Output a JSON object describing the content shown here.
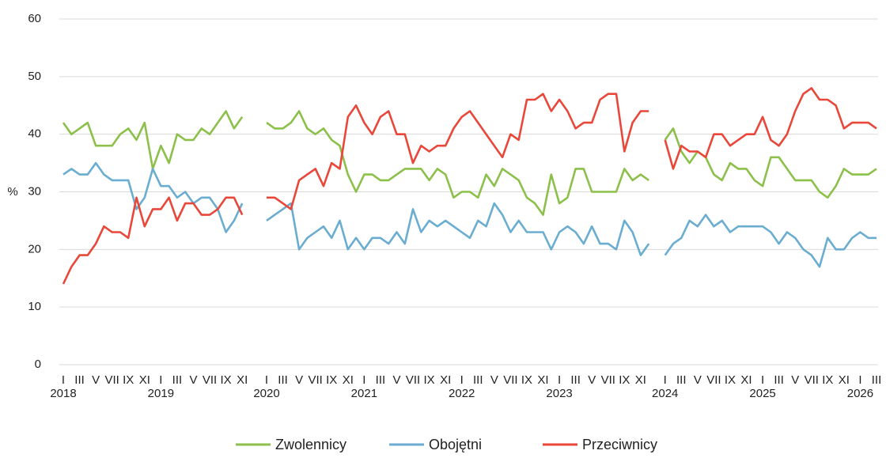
{
  "chart_data": {
    "type": "line",
    "ylabel": "%",
    "ylim": [
      0,
      60
    ],
    "yticks": [
      0,
      10,
      20,
      30,
      40,
      50,
      60
    ],
    "grid": true,
    "legend": "bottom",
    "categories": [
      "I",
      null,
      "III",
      null,
      "V",
      null,
      "VII",
      null,
      "IX",
      null,
      "XI",
      null,
      "I",
      null,
      "III",
      null,
      "V",
      null,
      "VII",
      null,
      "IX",
      null,
      "XI",
      null,
      null,
      "I",
      null,
      "III",
      null,
      "V",
      null,
      "VII",
      null,
      "IX",
      null,
      "XI",
      null,
      "I",
      null,
      "III",
      null,
      "V",
      null,
      "VII",
      null,
      "IX",
      null,
      "XI",
      null,
      "I",
      null,
      "III",
      null,
      "V",
      null,
      "VII",
      null,
      "IX",
      null,
      "XI",
      null,
      "I",
      null,
      "III",
      null,
      "V",
      null,
      "VII",
      null,
      "IX",
      null,
      "XI",
      null,
      null,
      "I",
      null,
      "III",
      null,
      "V",
      null,
      "VII",
      null,
      "IX",
      null,
      "XI",
      null,
      "I",
      null,
      "III",
      null,
      "V",
      null,
      "VII",
      null,
      "IX",
      null,
      "XI",
      null,
      "I",
      null,
      "III"
    ],
    "groups": [
      {
        "label": "2018",
        "at": 0
      },
      {
        "label": "2019",
        "at": 12
      },
      {
        "label": "2020",
        "at": 25
      },
      {
        "label": "2021",
        "at": 37
      },
      {
        "label": "2022",
        "at": 49
      },
      {
        "label": "2023",
        "at": 61
      },
      {
        "label": "2024",
        "at": 74
      },
      {
        "label": "2025",
        "at": 86
      },
      {
        "label": "2026",
        "at": 98
      }
    ],
    "series": [
      {
        "name": "Zwolennicy",
        "color": "#8cc04a",
        "values": [
          42,
          40,
          41,
          42,
          38,
          38,
          38,
          40,
          41,
          39,
          42,
          34,
          38,
          35,
          40,
          39,
          39,
          41,
          40,
          42,
          44,
          41,
          43,
          null,
          null,
          42,
          41,
          41,
          42,
          44,
          41,
          40,
          41,
          39,
          38,
          33,
          30,
          33,
          33,
          32,
          32,
          33,
          34,
          34,
          34,
          32,
          34,
          33,
          29,
          30,
          30,
          29,
          33,
          31,
          34,
          33,
          32,
          29,
          28,
          26,
          33,
          28,
          29,
          34,
          34,
          30,
          30,
          30,
          30,
          34,
          32,
          33,
          32,
          null,
          39,
          41,
          37,
          35,
          37,
          36,
          33,
          32,
          35,
          34,
          34,
          32,
          31,
          36,
          36,
          34,
          32,
          32,
          32,
          30,
          29,
          31,
          34,
          33,
          33,
          33,
          34
        ]
      },
      {
        "name": "Obojętni",
        "color": "#6aadd0",
        "values": [
          33,
          34,
          33,
          33,
          35,
          33,
          32,
          32,
          32,
          27,
          29,
          34,
          31,
          31,
          29,
          30,
          28,
          29,
          29,
          27,
          23,
          25,
          28,
          null,
          null,
          25,
          26,
          27,
          28,
          20,
          22,
          23,
          24,
          22,
          25,
          20,
          22,
          20,
          22,
          22,
          21,
          23,
          21,
          27,
          23,
          25,
          24,
          25,
          24,
          23,
          22,
          25,
          24,
          28,
          26,
          23,
          25,
          23,
          23,
          23,
          20,
          23,
          24,
          23,
          21,
          24,
          21,
          21,
          20,
          25,
          23,
          19,
          21,
          null,
          19,
          21,
          22,
          25,
          24,
          26,
          24,
          25,
          23,
          24,
          24,
          24,
          24,
          23,
          21,
          23,
          22,
          20,
          19,
          17,
          22,
          20,
          20,
          22,
          23,
          22,
          22
        ]
      },
      {
        "name": "Przeciwnicy",
        "color": "#e8473a",
        "values": [
          14,
          17,
          19,
          19,
          21,
          24,
          23,
          23,
          22,
          29,
          24,
          27,
          27,
          29,
          25,
          28,
          28,
          26,
          26,
          27,
          29,
          29,
          26,
          null,
          null,
          29,
          29,
          28,
          27,
          32,
          33,
          34,
          31,
          35,
          34,
          43,
          45,
          42,
          40,
          43,
          44,
          40,
          40,
          35,
          38,
          37,
          38,
          38,
          41,
          43,
          44,
          42,
          40,
          38,
          36,
          40,
          39,
          46,
          46,
          47,
          44,
          46,
          44,
          41,
          42,
          42,
          46,
          47,
          47,
          37,
          42,
          44,
          44,
          null,
          39,
          34,
          38,
          37,
          37,
          36,
          40,
          40,
          38,
          39,
          40,
          40,
          43,
          39,
          38,
          40,
          44,
          47,
          48,
          46,
          46,
          45,
          41,
          42,
          42,
          42,
          41
        ]
      }
    ]
  }
}
